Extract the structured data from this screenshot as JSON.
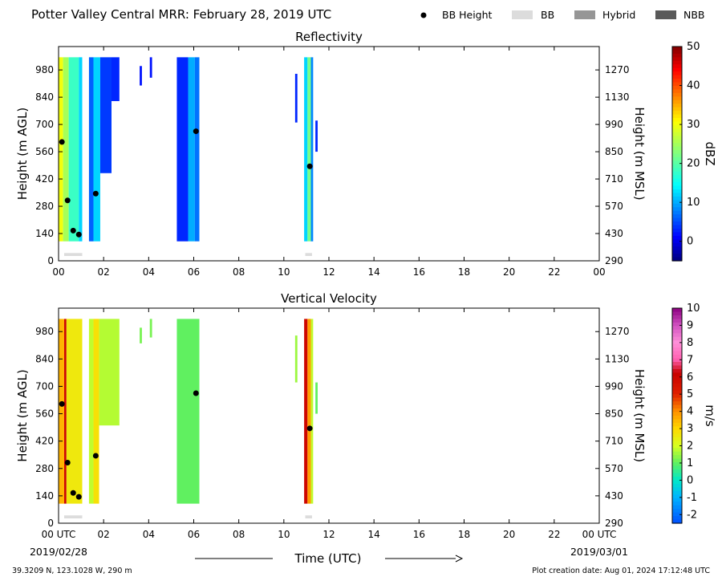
{
  "header": {
    "title": "Potter Valley Central MRR:  February 28, 2019 UTC"
  },
  "legend": {
    "items": [
      {
        "label": "BB Height",
        "marker": "dot",
        "color": "#000000"
      },
      {
        "label": "BB",
        "marker": "box",
        "color": "#dcdcdc"
      },
      {
        "label": "Hybrid",
        "marker": "box",
        "color": "#969696"
      },
      {
        "label": "NBB",
        "marker": "box",
        "color": "#595959"
      }
    ]
  },
  "footer": {
    "location": "39.3209 N, 123.1028 W, 290 m",
    "creation": "Plot creation date: Aug 01, 2024 17:12:48 UTC"
  },
  "x_axis": {
    "label": "Time (UTC)",
    "ticks_top": [
      "00",
      "02",
      "04",
      "06",
      "08",
      "10",
      "12",
      "14",
      "16",
      "18",
      "20",
      "22",
      "00"
    ],
    "ticks_bottom": [
      "00 UTC",
      "02",
      "04",
      "06",
      "08",
      "10",
      "12",
      "14",
      "16",
      "18",
      "20",
      "22",
      "00 UTC"
    ],
    "start_date": "2019/02/28",
    "end_date": "2019/03/01"
  },
  "chart_data": [
    {
      "type": "heatmap",
      "title": "Reflectivity",
      "ylabel": "Height (m AGL)",
      "ylabel_right": "Height (m MSL)",
      "colorbar_label": "dBZ",
      "colorbar_range": [
        -5,
        50
      ],
      "colorbar_ticks": [
        "0",
        "10",
        "20",
        "30",
        "40",
        "50"
      ],
      "colorbar_tick_values": [
        0,
        10,
        20,
        30,
        40,
        50
      ],
      "xlim": [
        0,
        24
      ],
      "ylim": [
        0,
        1100
      ],
      "yticks": [
        0,
        140,
        280,
        420,
        560,
        700,
        840,
        980
      ],
      "yticks_right": [
        "290",
        "430",
        "570",
        "710",
        "850",
        "990",
        "1130",
        "1270"
      ],
      "yticks_right_values": [
        0,
        140,
        280,
        420,
        560,
        700,
        840,
        980
      ],
      "precip_columns": [
        {
          "x_start": 0.0,
          "x_end": 0.2,
          "y_bottom": 100,
          "y_top": 1045,
          "value": 30
        },
        {
          "x_start": 0.2,
          "x_end": 0.45,
          "y_bottom": 100,
          "y_top": 1045,
          "value": 25
        },
        {
          "x_start": 0.45,
          "x_end": 0.9,
          "y_bottom": 100,
          "y_top": 1045,
          "value": 18
        },
        {
          "x_start": 0.9,
          "x_end": 1.05,
          "y_bottom": 100,
          "y_top": 1045,
          "value": 12
        },
        {
          "x_start": 1.35,
          "x_end": 1.55,
          "y_bottom": 100,
          "y_top": 1045,
          "value": 6
        },
        {
          "x_start": 1.55,
          "x_end": 1.85,
          "y_bottom": 100,
          "y_top": 1045,
          "value": 12
        },
        {
          "x_start": 1.85,
          "x_end": 2.35,
          "y_bottom": 450,
          "y_top": 1045,
          "value": 4
        },
        {
          "x_start": 2.35,
          "x_end": 2.7,
          "y_bottom": 820,
          "y_top": 1045,
          "value": 3
        },
        {
          "x_start": 3.6,
          "x_end": 3.7,
          "y_bottom": 900,
          "y_top": 1000,
          "value": 2
        },
        {
          "x_start": 4.05,
          "x_end": 4.15,
          "y_bottom": 940,
          "y_top": 1045,
          "value": 2
        },
        {
          "x_start": 5.25,
          "x_end": 5.75,
          "y_bottom": 100,
          "y_top": 1045,
          "value": 3
        },
        {
          "x_start": 5.75,
          "x_end": 6.05,
          "y_bottom": 100,
          "y_top": 1045,
          "value": 10
        },
        {
          "x_start": 6.05,
          "x_end": 6.25,
          "y_bottom": 100,
          "y_top": 1045,
          "value": 7
        },
        {
          "x_start": 10.5,
          "x_end": 10.6,
          "y_bottom": 710,
          "y_top": 960,
          "value": 3
        },
        {
          "x_start": 10.9,
          "x_end": 11.05,
          "y_bottom": 100,
          "y_top": 1045,
          "value": 12
        },
        {
          "x_start": 11.05,
          "x_end": 11.2,
          "y_bottom": 100,
          "y_top": 1045,
          "value": 22
        },
        {
          "x_start": 11.2,
          "x_end": 11.3,
          "y_bottom": 100,
          "y_top": 1045,
          "value": 8
        },
        {
          "x_start": 11.4,
          "x_end": 11.5,
          "y_bottom": 560,
          "y_top": 720,
          "value": 3
        }
      ],
      "bb_height_points": [
        {
          "x": 0.15,
          "y": 610
        },
        {
          "x": 0.4,
          "y": 310
        },
        {
          "x": 0.65,
          "y": 155
        },
        {
          "x": 0.9,
          "y": 135
        },
        {
          "x": 1.65,
          "y": 345
        },
        {
          "x": 6.1,
          "y": 665
        },
        {
          "x": 11.15,
          "y": 485
        }
      ],
      "bb_bars": [
        {
          "x_start": 0.25,
          "x_end": 1.05
        },
        {
          "x_start": 10.95,
          "x_end": 11.25
        }
      ]
    },
    {
      "type": "heatmap",
      "title": "Vertical Velocity",
      "ylabel": "Height (m AGL)",
      "ylabel_right": "Height (m MSL)",
      "colorbar_label": "m/s",
      "colorbar_range": [
        -2.5,
        10
      ],
      "colorbar_ticks": [
        "-2",
        "-1",
        "0",
        "1",
        "2",
        "3",
        "4",
        "5",
        "6",
        "7",
        "8",
        "9",
        "10"
      ],
      "colorbar_tick_values": [
        -2,
        -1,
        0,
        1,
        2,
        3,
        4,
        5,
        6,
        7,
        8,
        9,
        10
      ],
      "xlim": [
        0,
        24
      ],
      "ylim": [
        0,
        1100
      ],
      "yticks": [
        0,
        140,
        280,
        420,
        560,
        700,
        840,
        980
      ],
      "yticks_right": [
        "290",
        "430",
        "570",
        "710",
        "850",
        "990",
        "1130",
        "1270"
      ],
      "yticks_right_values": [
        0,
        140,
        280,
        420,
        560,
        700,
        840,
        980
      ],
      "precip_columns": [
        {
          "x_start": 0.0,
          "x_end": 0.25,
          "y_bottom": 100,
          "y_top": 1045,
          "value": 3.5
        },
        {
          "x_start": 0.25,
          "x_end": 0.35,
          "y_bottom": 100,
          "y_top": 1045,
          "value": 6
        },
        {
          "x_start": 0.35,
          "x_end": 1.05,
          "y_bottom": 100,
          "y_top": 1045,
          "value": 2.6
        },
        {
          "x_start": 1.35,
          "x_end": 1.55,
          "y_bottom": 100,
          "y_top": 1045,
          "value": 1.8
        },
        {
          "x_start": 1.55,
          "x_end": 1.8,
          "y_bottom": 100,
          "y_top": 1045,
          "value": 2.8
        },
        {
          "x_start": 1.8,
          "x_end": 2.7,
          "y_bottom": 500,
          "y_top": 1045,
          "value": 1.7
        },
        {
          "x_start": 3.6,
          "x_end": 3.7,
          "y_bottom": 920,
          "y_top": 1000,
          "value": 1.2
        },
        {
          "x_start": 4.05,
          "x_end": 4.15,
          "y_bottom": 950,
          "y_top": 1045,
          "value": 1.2
        },
        {
          "x_start": 5.25,
          "x_end": 6.25,
          "y_bottom": 100,
          "y_top": 1045,
          "value": 1.0
        },
        {
          "x_start": 10.5,
          "x_end": 10.6,
          "y_bottom": 720,
          "y_top": 960,
          "value": 1.5
        },
        {
          "x_start": 10.9,
          "x_end": 11.05,
          "y_bottom": 100,
          "y_top": 1045,
          "value": 6
        },
        {
          "x_start": 11.05,
          "x_end": 11.2,
          "y_bottom": 100,
          "y_top": 1045,
          "value": 3.8
        },
        {
          "x_start": 11.2,
          "x_end": 11.3,
          "y_bottom": 100,
          "y_top": 1045,
          "value": 1.8
        },
        {
          "x_start": 11.4,
          "x_end": 11.5,
          "y_bottom": 560,
          "y_top": 720,
          "value": 1.0
        }
      ],
      "bb_height_points": [
        {
          "x": 0.15,
          "y": 610
        },
        {
          "x": 0.4,
          "y": 310
        },
        {
          "x": 0.65,
          "y": 155
        },
        {
          "x": 0.9,
          "y": 135
        },
        {
          "x": 1.65,
          "y": 345
        },
        {
          "x": 6.1,
          "y": 665
        },
        {
          "x": 11.15,
          "y": 485
        }
      ],
      "bb_bars": [
        {
          "x_start": 0.25,
          "x_end": 1.05
        },
        {
          "x_start": 10.95,
          "x_end": 11.25
        }
      ]
    }
  ]
}
